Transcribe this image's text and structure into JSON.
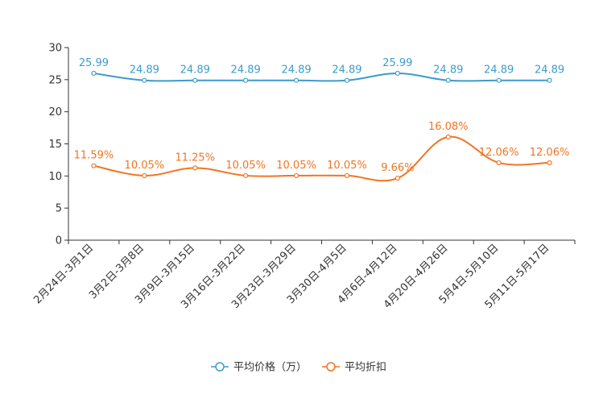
{
  "chart_data": {
    "type": "line",
    "title": "",
    "xlabel": "",
    "ylabel": "",
    "ylim": [
      0,
      30
    ],
    "yticks": [
      0,
      5,
      10,
      15,
      20,
      25,
      30
    ],
    "grid": false,
    "legend_position": "bottom-center",
    "categories": [
      "2月24日-3月1日",
      "3月2日-3月8日",
      "3月9日-3月15日",
      "3月16日-3月22日",
      "3月23日-3月29日",
      "3月30日-4月5日",
      "4月6日-4月12日",
      "4月20日-4月26日",
      "5月4日-5月10日",
      "5月11日-5月17日"
    ],
    "series": [
      {
        "name": "平均价格（万）",
        "color": "#3b9ccd",
        "values": [
          25.99,
          24.89,
          24.89,
          24.89,
          24.89,
          24.89,
          25.99,
          24.89,
          24.89,
          24.89
        ],
        "labels": [
          "25.99",
          "24.89",
          "24.89",
          "24.89",
          "24.89",
          "24.89",
          "25.99",
          "24.89",
          "24.89",
          "24.89"
        ]
      },
      {
        "name": "平均折扣",
        "color": "#f07522",
        "values": [
          11.59,
          10.05,
          11.25,
          10.05,
          10.05,
          10.05,
          9.66,
          16.08,
          12.06,
          12.06
        ],
        "labels": [
          "11.59%",
          "10.05%",
          "11.25%",
          "10.05%",
          "10.05%",
          "10.05%",
          "9.66%",
          "16.08%",
          "12.06%",
          "12.06%"
        ]
      }
    ]
  }
}
